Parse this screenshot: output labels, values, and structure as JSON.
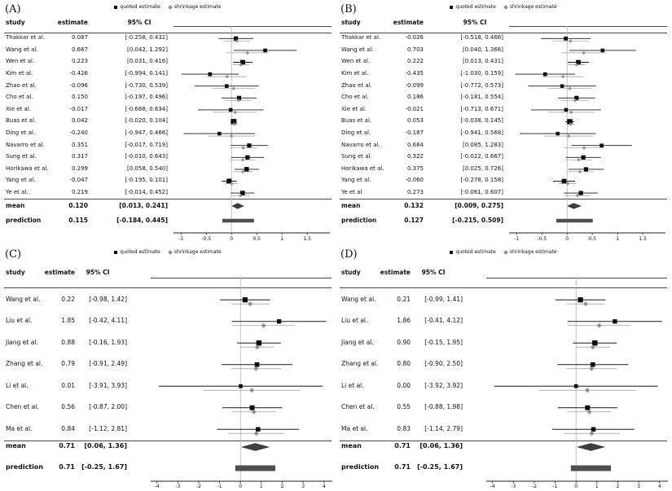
{
  "figure": {
    "legend_quoted": "quoted estimate",
    "legend_shrinkage": "shrinkage estimate",
    "columns": {
      "study": "study",
      "estimate": "estimate",
      "ci": "95% CI"
    }
  },
  "chart_data": [
    {
      "type": "forest",
      "panel_label": "(A)",
      "legend": [
        "quoted estimate",
        "shrinkage estimate"
      ],
      "columns": [
        "study",
        "estimate",
        "95% CI"
      ],
      "xlim": [
        -1.15,
        1.95
      ],
      "xticks": [
        -1,
        -0.5,
        0,
        0.5,
        1,
        1.5
      ],
      "xtick_labels": [
        "-1",
        "-0.5",
        "0",
        "0.5",
        "1",
        "1.5"
      ],
      "zero_line": 0,
      "studies": [
        {
          "study": "Thakkar et al.",
          "estimate": "0.087",
          "lo": "-0.258",
          "hi": "0.432"
        },
        {
          "study": "Wang et al.",
          "estimate": "0.667",
          "lo": "0.042",
          "hi": "1.292"
        },
        {
          "study": "Wen et al.",
          "estimate": "0.223",
          "lo": "0.031",
          "hi": "0.416"
        },
        {
          "study": "Kim et al.",
          "estimate": "-0.426",
          "lo": "-0.994",
          "hi": "0.141"
        },
        {
          "study": "Zhao et al.",
          "estimate": "-0.096",
          "lo": "-0.730",
          "hi": "0.539"
        },
        {
          "study": "Cho et al.",
          "estimate": "0.150",
          "lo": "-0.197",
          "hi": "0.496"
        },
        {
          "study": "Xie et al.",
          "estimate": "-0.017",
          "lo": "-0.668",
          "hi": "0.634"
        },
        {
          "study": "Buas et al.",
          "estimate": "0.042",
          "lo": "-0.020",
          "hi": "0.104"
        },
        {
          "study": "Ding et al.",
          "estimate": "-0.240",
          "lo": "-0.947",
          "hi": "0.466"
        },
        {
          "study": "Navarro et al.",
          "estimate": "0.351",
          "lo": "-0.017",
          "hi": "0.719"
        },
        {
          "study": "Sung et al.",
          "estimate": "0.317",
          "lo": "-0.010",
          "hi": "0.643"
        },
        {
          "study": "Horikawa et al.",
          "estimate": "0.299",
          "lo": "0.058",
          "hi": "0.540"
        },
        {
          "study": "Yang et al.",
          "estimate": "-0.047",
          "lo": "-0.195",
          "hi": "0.101"
        },
        {
          "study": "Ye et al.",
          "estimate": "0.219",
          "lo": "-0.014",
          "hi": "0.452"
        }
      ],
      "mean": {
        "label": "mean",
        "estimate": "0.120",
        "lo": "0.013",
        "hi": "0.241"
      },
      "prediction": {
        "label": "prediction",
        "estimate": "0.115",
        "lo": "-0.184",
        "hi": "0.445"
      }
    },
    {
      "type": "forest",
      "panel_label": "(B)",
      "legend": [
        "quoted estimate",
        "shrinkage estimate"
      ],
      "columns": [
        "study",
        "estimate",
        "95% CI"
      ],
      "xlim": [
        -1.15,
        1.95
      ],
      "xticks": [
        -1,
        -0.5,
        0,
        0.5,
        1,
        1.5
      ],
      "xtick_labels": [
        "-1",
        "-0.5",
        "0",
        "0.5",
        "1",
        "1.5"
      ],
      "zero_line": 0,
      "studies": [
        {
          "study": "Thakkar et al.",
          "estimate": "-0.026",
          "lo": "-0.518",
          "hi": "0.466"
        },
        {
          "study": "Wang et al.",
          "estimate": "0.703",
          "lo": "0.040",
          "hi": "1.366"
        },
        {
          "study": "Wen et al.",
          "estimate": "0.222",
          "lo": "0.013",
          "hi": "0.431"
        },
        {
          "study": "Kim et al.",
          "estimate": "-0.435",
          "lo": "-1.030",
          "hi": "0.159"
        },
        {
          "study": "Zhao et al.",
          "estimate": "-0.099",
          "lo": "-0.772",
          "hi": "0.573"
        },
        {
          "study": "Cho et al.",
          "estimate": "0.186",
          "lo": "-0.181",
          "hi": "0.554"
        },
        {
          "study": "Xie et al.",
          "estimate": "-0.021",
          "lo": "-0.713",
          "hi": "0.671"
        },
        {
          "study": "Buas et al.",
          "estimate": "0.053",
          "lo": "-0.038",
          "hi": "0.145"
        },
        {
          "study": "Ding et al.",
          "estimate": "-0.187",
          "lo": "-0.941",
          "hi": "0.568"
        },
        {
          "study": "Navarro et al.",
          "estimate": "0.684",
          "lo": "0.085",
          "hi": "1.283"
        },
        {
          "study": "Sung et al.",
          "estimate": "0.322",
          "lo": "-0.022",
          "hi": "0.667"
        },
        {
          "study": "Horikawa et al.",
          "estimate": "0.375",
          "lo": "0.025",
          "hi": "0.726"
        },
        {
          "study": "Yang et al.",
          "estimate": "-0.060",
          "lo": "-0.278",
          "hi": "0.158"
        },
        {
          "study": "Ye et al",
          "estimate": "0.273",
          "lo": "-0.061",
          "hi": "0.607"
        }
      ],
      "mean": {
        "label": "mean",
        "estimate": "0.132",
        "lo": "0.009",
        "hi": "0.275"
      },
      "prediction": {
        "label": "prediction",
        "estimate": "0.127",
        "lo": "-0.215",
        "hi": "0.509"
      }
    },
    {
      "type": "forest",
      "panel_label": "(C)",
      "legend": [
        "quoted estimate",
        "shrinkage estimate"
      ],
      "columns": [
        "study",
        "estimate",
        "95% CI"
      ],
      "xlim": [
        -4.3,
        4.4
      ],
      "xticks": [
        -4,
        -3,
        -2,
        -1,
        0,
        1,
        2,
        3,
        4
      ],
      "xtick_labels": [
        "-4",
        "-3",
        "-2",
        "-1",
        "0",
        "1",
        "2",
        "3",
        "4"
      ],
      "zero_line": 0,
      "studies": [
        {
          "study": "Wang et al.",
          "estimate": "0.22",
          "lo": "-0.98",
          "hi": "1.42"
        },
        {
          "study": "Liu et al.",
          "estimate": "1.85",
          "lo": "-0.42",
          "hi": "4.11"
        },
        {
          "study": "Jiang et al.",
          "estimate": "0.88",
          "lo": "-0.16",
          "hi": "1.93"
        },
        {
          "study": "Zhang et al.",
          "estimate": "0.79",
          "lo": "-0.91",
          "hi": "2.49"
        },
        {
          "study": "Li et al.",
          "estimate": "0.01",
          "lo": "-3.91",
          "hi": "3.93"
        },
        {
          "study": "Chen et al.",
          "estimate": "0.56",
          "lo": "-0.87",
          "hi": "2.00"
        },
        {
          "study": "Ma et al.",
          "estimate": "0.84",
          "lo": "-1.12",
          "hi": "2.81"
        }
      ],
      "mean": {
        "label": "mean",
        "estimate": "0.71",
        "lo": "0.06",
        "hi": "1.36"
      },
      "prediction": {
        "label": "prediction",
        "estimate": "0.71",
        "lo": "-0.25",
        "hi": "1.67"
      }
    },
    {
      "type": "forest",
      "panel_label": "(D)",
      "legend": [
        "quoted estimate",
        "shrinkage estimate"
      ],
      "columns": [
        "study",
        "estimate",
        "95% CI"
      ],
      "xlim": [
        -4.3,
        4.4
      ],
      "xticks": [
        -4,
        -3,
        -2,
        -1,
        0,
        1,
        2,
        3,
        4
      ],
      "xtick_labels": [
        "-4",
        "-3",
        "-2",
        "-1",
        "0",
        "1",
        "2",
        "3",
        "4"
      ],
      "zero_line": 0,
      "studies": [
        {
          "study": "Wang et al.",
          "estimate": "0.21",
          "lo": "-0.99",
          "hi": "1.41"
        },
        {
          "study": "Liu et al.",
          "estimate": "1.86",
          "lo": "-0.41",
          "hi": "4.12"
        },
        {
          "study": "Jiang et al.",
          "estimate": "0.90",
          "lo": "-0.15",
          "hi": "1.95"
        },
        {
          "study": "Zhang et al.",
          "estimate": "0.80",
          "lo": "-0.90",
          "hi": "2.50"
        },
        {
          "study": "Li et al.",
          "estimate": "0.00",
          "lo": "-3.92",
          "hi": "3.92"
        },
        {
          "study": "Chen et al.",
          "estimate": "0.55",
          "lo": "-0.88",
          "hi": "1.98"
        },
        {
          "study": "Ma et al.",
          "estimate": "0.83",
          "lo": "-1.14",
          "hi": "2.79"
        }
      ],
      "mean": {
        "label": "mean",
        "estimate": "0.71",
        "lo": "0.06",
        "hi": "1.36"
      },
      "prediction": {
        "label": "prediction",
        "estimate": "0.71",
        "lo": "-0.25",
        "hi": "1.67"
      }
    }
  ]
}
